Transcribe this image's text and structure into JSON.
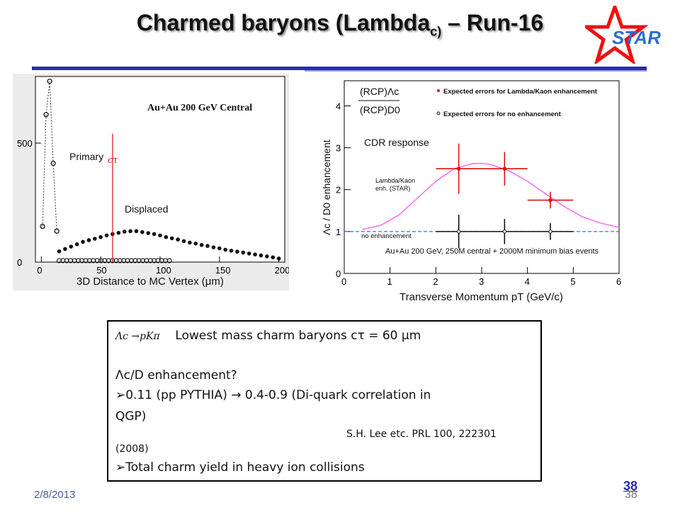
{
  "slide": {
    "title_main": "Charmed baryons (Lambda",
    "title_sub": "c)",
    "title_tail": " – Run-16",
    "logo_text": "STAR",
    "date": "2/8/2013",
    "page_number": "38",
    "page_number_footer": "38"
  },
  "left_plot": {
    "annotation_title": "Au+Au 200 GeV Central",
    "label_primary": "Primary",
    "label_displaced": "Displaced",
    "label_ctau": "cτ",
    "xlabel": "3D Distance to MC Vertex (μm)",
    "y_ticks": [
      "0",
      "500"
    ],
    "x_ticks": [
      "0",
      "50",
      "100",
      "150",
      "200"
    ]
  },
  "right_plot": {
    "ylabel": "Λc / D0 enhancement",
    "xlabel": "Transverse Momentum pT (GeV/c)",
    "ratio_numerator": "(RCP)Λc",
    "ratio_denominator": "(RCP)D0",
    "legend_red": "Expected errors for Lambda/Kaon enhancement",
    "legend_black": "Expected errors for no enhancement",
    "label_cdr": "CDR response",
    "label_lambda_kaon": "Lambda/Kaon",
    "label_lambda_kaon_2": "enh. (STAR)",
    "label_no_enh": "no enhancement",
    "label_events": "Au+Au 200 GeV, 250M central + 2000M minimum bias events",
    "y_ticks": [
      "0",
      "1",
      "2",
      "3",
      "4"
    ],
    "x_ticks": [
      "0",
      "1",
      "2",
      "3",
      "4",
      "5",
      "6"
    ]
  },
  "chart_data": [
    {
      "type": "scatter",
      "title": "Au+Au 200 GeV Central",
      "xlabel": "3D Distance to MC Vertex (μm)",
      "ylabel": "",
      "xlim": [
        -5,
        205
      ],
      "ylim": [
        0,
        780
      ],
      "series": [
        {
          "name": "Primary",
          "x": [
            1,
            4,
            7,
            10,
            13
          ],
          "y": [
            150,
            620,
            760,
            415,
            130
          ]
        },
        {
          "name": "Displaced",
          "x": [
            15,
            20,
            25,
            30,
            35,
            40,
            45,
            50,
            55,
            60,
            65,
            70,
            75,
            80,
            85,
            90,
            95,
            100,
            105,
            110,
            115,
            120,
            125,
            130,
            135,
            140,
            145,
            150,
            155,
            160,
            165,
            170,
            175,
            180,
            185,
            190,
            195,
            200
          ],
          "y": [
            45,
            55,
            65,
            75,
            85,
            92,
            98,
            105,
            112,
            118,
            123,
            128,
            130,
            130,
            126,
            122,
            118,
            112,
            105,
            100,
            95,
            88,
            82,
            78,
            72,
            68,
            62,
            58,
            52,
            48,
            44,
            40,
            36,
            32,
            28,
            24,
            20,
            15
          ]
        }
      ],
      "annotation": {
        "label": "cτ",
        "x": 60
      }
    },
    {
      "type": "line",
      "title": "",
      "xlabel": "Transverse Momentum pT (GeV/c)",
      "ylabel": "Λc / D0 enhancement",
      "xlim": [
        0,
        6
      ],
      "ylim": [
        0,
        4.6
      ],
      "series": [
        {
          "name": "Expected errors for Lambda/Kaon enhancement",
          "x": [
            2.5,
            3.5,
            4.5
          ],
          "y": [
            2.5,
            2.5,
            1.75
          ],
          "xerr": [
            0.5,
            0.5,
            0.5
          ],
          "yerr": [
            0.6,
            0.4,
            0.2
          ],
          "color": "#dd1111"
        },
        {
          "name": "Expected errors for no enhancement",
          "x": [
            2.5,
            3.5,
            4.5
          ],
          "y": [
            1.0,
            1.0,
            1.0
          ],
          "xerr": [
            0.5,
            0.5,
            0.5
          ],
          "yerr": [
            0.4,
            0.3,
            0.2
          ],
          "color": "#111111"
        },
        {
          "name": "Lambda/Kaon enh. (STAR)",
          "x": [
            0.4,
            0.8,
            1.2,
            1.6,
            2.0,
            2.4,
            2.8,
            3.0,
            3.2,
            3.6,
            4.0,
            4.4,
            4.8,
            5.2,
            5.6,
            6.0
          ],
          "y": [
            1.05,
            1.15,
            1.4,
            1.8,
            2.2,
            2.5,
            2.62,
            2.63,
            2.6,
            2.45,
            2.2,
            1.9,
            1.6,
            1.35,
            1.2,
            1.1
          ],
          "color": "#ff55ff"
        },
        {
          "name": "no enhancement",
          "x": [
            0,
            6
          ],
          "y": [
            1.0,
            1.0
          ],
          "color": "#4466ff"
        }
      ]
    }
  ],
  "textbox": {
    "line1_sym": "Λc →pKπ",
    "line1_text": "Lowest mass charm baryons   cτ = 60 μm",
    "line2": "Λc/D enhancement?",
    "line3": "➢0.11 (pp PYTHIA) → 0.4-0.9     (Di-quark correlation in",
    "line4": "QGP)",
    "line5": "S.H. Lee etc. PRL 100, 222301",
    "line6": "(2008)",
    "line7": "➢Total charm yield in heavy ion collisions"
  }
}
